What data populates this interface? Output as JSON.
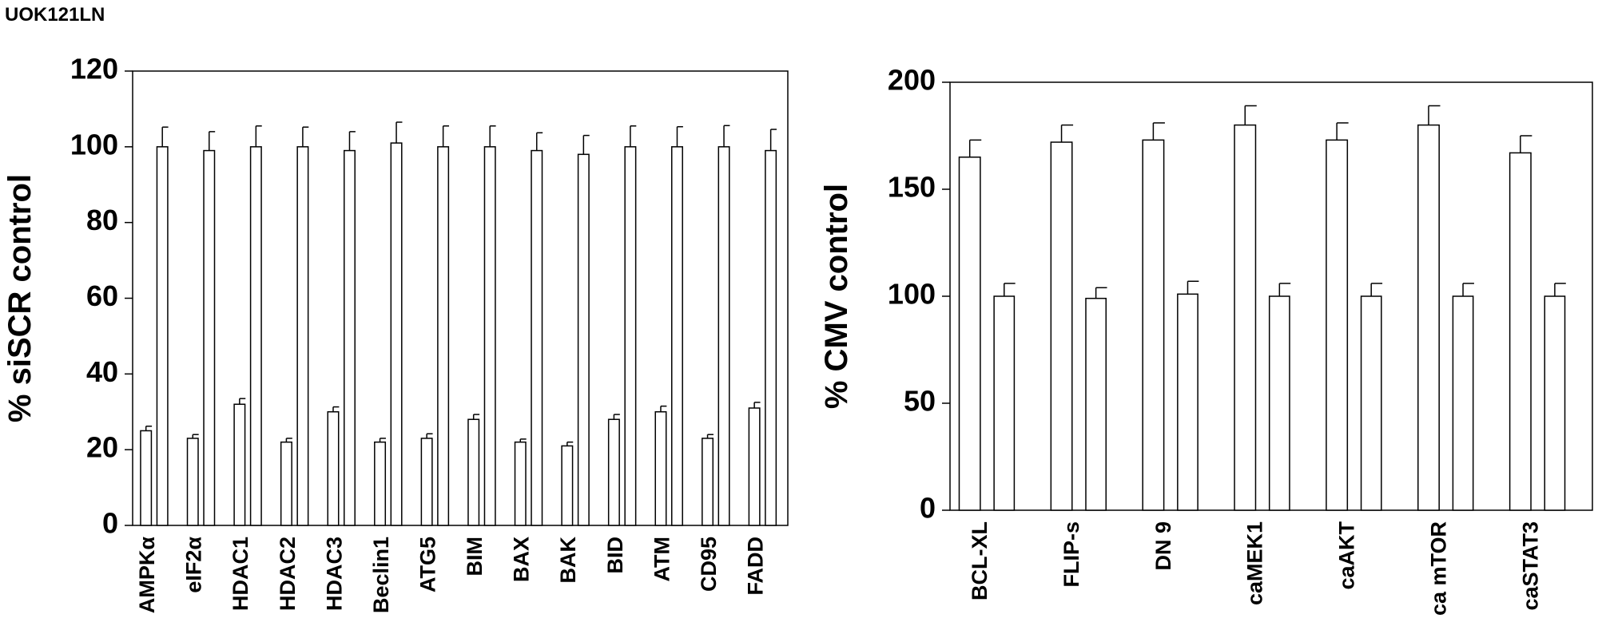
{
  "panel_label": "UOK121LN",
  "chart_data": [
    {
      "type": "bar",
      "ylabel": "% siSCR control",
      "categories": [
        "AMPKα",
        "eIF2α",
        "HDAC1",
        "HDAC2",
        "HDAC3",
        "Beclin1",
        "ATG5",
        "BIM",
        "BAX",
        "BAK",
        "BID",
        "ATM",
        "CD95",
        "FADD"
      ],
      "series": [
        {
          "color": "#ffffff",
          "values": [
            25,
            23,
            32,
            22,
            30,
            22,
            23,
            28,
            22,
            21,
            28,
            30,
            23,
            31
          ],
          "errors": [
            1.2,
            1,
            1.5,
            1,
            1.3,
            1,
            1.2,
            1.3,
            0.8,
            1,
            1.3,
            1.5,
            1,
            1.5
          ]
        },
        {
          "color": "#ffffff",
          "values": [
            100,
            99,
            100,
            100,
            99,
            101,
            100,
            100,
            99,
            98,
            100,
            100,
            100,
            99
          ],
          "errors": [
            5.2,
            5,
            5.5,
            5.2,
            5,
            5.5,
            5.5,
            5.5,
            4.7,
            5,
            5.5,
            5.3,
            5.6,
            5.6
          ]
        }
      ],
      "ylim": [
        0,
        120
      ],
      "yticks": [
        0,
        20,
        40,
        60,
        80,
        100,
        120
      ]
    },
    {
      "type": "bar",
      "ylabel": "% CMV control",
      "categories": [
        "BCL-XL",
        "FLIP-s",
        "DN 9",
        "caMEK1",
        "caAKT",
        "ca mTOR",
        "caSTAT3"
      ],
      "series": [
        {
          "color": "#ffffff",
          "values": [
            165,
            172,
            173,
            180,
            173,
            180,
            167
          ],
          "errors": [
            8,
            8,
            8,
            9,
            8,
            9,
            8
          ]
        },
        {
          "color": "#ffffff",
          "values": [
            100,
            99,
            101,
            100,
            100,
            100,
            100
          ],
          "errors": [
            6,
            5,
            6,
            6,
            6,
            6,
            6
          ]
        }
      ],
      "ylim": [
        0,
        200
      ],
      "yticks": [
        0,
        50,
        100,
        150,
        200
      ]
    }
  ]
}
